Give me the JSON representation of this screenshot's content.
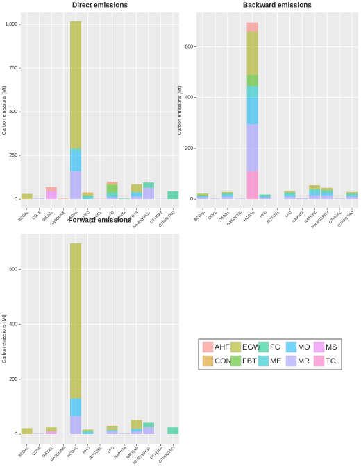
{
  "chart_data": [
    {
      "type": "bar",
      "stacked": true,
      "title": "Direct emissions",
      "ylabel": "Carbon emissions (Mt)",
      "categories": [
        "BCOAL",
        "COKE",
        "DIESEL",
        "GASOLINE",
        "HCOAL",
        "HFO",
        "JETFUEL",
        "LFO",
        "NAPHTA",
        "NATGAS",
        "NonENERGY",
        "OTHGAS",
        "OTHPETRO"
      ],
      "ylim": [
        -51,
        1068
      ],
      "yticks": [
        0,
        250,
        500,
        750,
        {
          "value": 1000,
          "label": "1,000"
        }
      ],
      "grid": true,
      "series": [
        {
          "name": "AHF",
          "color": "#F8766D",
          "values": [
            0,
            0,
            25,
            3,
            0,
            0,
            2,
            10,
            0,
            0,
            0,
            0,
            0
          ]
        },
        {
          "name": "CON",
          "color": "#D89000",
          "values": [
            0,
            0,
            0,
            0,
            0,
            8,
            0,
            0,
            0,
            0,
            0,
            0,
            0
          ]
        },
        {
          "name": "EGW",
          "color": "#A3A500",
          "values": [
            30,
            0,
            0,
            0,
            727,
            10,
            0,
            10,
            0,
            45,
            0,
            0,
            0
          ]
        },
        {
          "name": "FBT",
          "color": "#39B600",
          "values": [
            0,
            0,
            0,
            0,
            0,
            0,
            0,
            40,
            0,
            0,
            0,
            0,
            0
          ]
        },
        {
          "name": "FC",
          "color": "#00BF7D",
          "values": [
            0,
            0,
            0,
            0,
            5,
            12,
            0,
            20,
            3,
            0,
            30,
            0,
            45
          ]
        },
        {
          "name": "ME",
          "color": "#00BFC4",
          "values": [
            0,
            0,
            0,
            0,
            15,
            0,
            0,
            0,
            0,
            10,
            0,
            0,
            0
          ]
        },
        {
          "name": "MO",
          "color": "#00B0F6",
          "values": [
            0,
            0,
            0,
            0,
            110,
            8,
            0,
            10,
            0,
            15,
            0,
            0,
            0
          ]
        },
        {
          "name": "MR",
          "color": "#9590FF",
          "values": [
            0,
            3,
            0,
            0,
            160,
            0,
            0,
            10,
            0,
            15,
            65,
            2,
            0
          ]
        },
        {
          "name": "MS",
          "color": "#E76BF3",
          "values": [
            0,
            0,
            45,
            0,
            0,
            0,
            0,
            0,
            0,
            0,
            0,
            0,
            0
          ]
        },
        {
          "name": "TC",
          "color": "#FF62BC",
          "values": [
            0,
            0,
            0,
            0,
            0,
            0,
            0,
            0,
            0,
            0,
            0,
            0,
            0
          ]
        }
      ]
    },
    {
      "type": "bar",
      "stacked": true,
      "title": "Backward emissions",
      "ylabel": "Carbon emissions (Mt)",
      "categories": [
        "BCOAL",
        "COKE",
        "DIESEL",
        "GASOLINE",
        "HCOAL",
        "HFO",
        "JETFUEL",
        "LFO",
        "NAPHTA",
        "NATGAS",
        "NonENERGY",
        "OTHGAS",
        "OTHPETRO"
      ],
      "ylim": [
        -35,
        735
      ],
      "yticks": [
        0,
        200,
        400,
        600
      ],
      "grid": true,
      "series": [
        {
          "name": "AHF",
          "color": "#F8766D",
          "values": [
            0,
            0,
            0,
            0,
            35,
            0,
            0,
            0,
            0,
            0,
            0,
            0,
            0
          ]
        },
        {
          "name": "CON",
          "color": "#D89000",
          "values": [
            0,
            0,
            0,
            0,
            0,
            0,
            0,
            0,
            0,
            0,
            0,
            0,
            0
          ]
        },
        {
          "name": "EGW",
          "color": "#A3A500",
          "values": [
            4,
            0,
            5,
            0,
            170,
            0,
            0,
            6,
            0,
            15,
            10,
            0,
            6
          ]
        },
        {
          "name": "FBT",
          "color": "#39B600",
          "values": [
            5,
            0,
            0,
            0,
            45,
            0,
            0,
            0,
            0,
            0,
            0,
            0,
            0
          ]
        },
        {
          "name": "FC",
          "color": "#00BF7D",
          "values": [
            0,
            0,
            5,
            0,
            0,
            6,
            0,
            8,
            0,
            5,
            10,
            0,
            6
          ]
        },
        {
          "name": "ME",
          "color": "#00BFC4",
          "values": [
            0,
            0,
            0,
            0,
            45,
            0,
            0,
            0,
            0,
            10,
            0,
            0,
            0
          ]
        },
        {
          "name": "MO",
          "color": "#00B0F6",
          "values": [
            5,
            0,
            8,
            0,
            105,
            6,
            0,
            8,
            0,
            10,
            10,
            0,
            6
          ]
        },
        {
          "name": "MR",
          "color": "#9590FF",
          "values": [
            8,
            2,
            10,
            2,
            185,
            6,
            1,
            10,
            3,
            15,
            15,
            2,
            10
          ]
        },
        {
          "name": "MS",
          "color": "#E76BF3",
          "values": [
            0,
            0,
            0,
            0,
            0,
            0,
            0,
            0,
            0,
            0,
            0,
            0,
            0
          ]
        },
        {
          "name": "TC",
          "color": "#FF62BC",
          "values": [
            0,
            0,
            0,
            0,
            110,
            0,
            0,
            0,
            0,
            0,
            0,
            0,
            0
          ]
        }
      ]
    },
    {
      "type": "bar",
      "stacked": true,
      "title": "Forward emissions",
      "ylabel": "Carbon emissions (Mt)",
      "categories": [
        "BCOAL",
        "COKE",
        "DIESEL",
        "GASOLINE",
        "HCOAL",
        "HFO",
        "JETFUEL",
        "LFO",
        "NAPHTA",
        "NATGAS",
        "NonENERGY",
        "OTHGAS",
        "OTHPETRO"
      ],
      "ylim": [
        -35,
        730
      ],
      "yticks": [
        0,
        200,
        400,
        600
      ],
      "grid": true,
      "series": [
        {
          "name": "AHF",
          "color": "#F8766D",
          "values": [
            0,
            0,
            0,
            0,
            0,
            0,
            0,
            0,
            0,
            0,
            0,
            0,
            0
          ]
        },
        {
          "name": "CON",
          "color": "#D89000",
          "values": [
            0,
            0,
            0,
            0,
            0,
            0,
            0,
            0,
            0,
            0,
            0,
            0,
            0
          ]
        },
        {
          "name": "EGW",
          "color": "#A3A500",
          "values": [
            22,
            0,
            15,
            0,
            565,
            5,
            0,
            15,
            0,
            32,
            0,
            0,
            0
          ]
        },
        {
          "name": "FBT",
          "color": "#39B600",
          "values": [
            0,
            0,
            0,
            0,
            0,
            0,
            0,
            0,
            0,
            0,
            0,
            0,
            0
          ]
        },
        {
          "name": "FC",
          "color": "#00BF7D",
          "values": [
            0,
            0,
            0,
            0,
            0,
            6,
            0,
            0,
            0,
            0,
            17,
            0,
            25
          ]
        },
        {
          "name": "ME",
          "color": "#00BFC4",
          "values": [
            0,
            0,
            0,
            0,
            0,
            0,
            0,
            0,
            0,
            0,
            0,
            0,
            0
          ]
        },
        {
          "name": "MO",
          "color": "#00B0F6",
          "values": [
            0,
            0,
            0,
            0,
            65,
            6,
            0,
            5,
            0,
            10,
            0,
            0,
            0
          ]
        },
        {
          "name": "MR",
          "color": "#9590FF",
          "values": [
            0,
            2,
            0,
            1,
            65,
            0,
            1,
            10,
            2,
            10,
            25,
            1,
            0
          ]
        },
        {
          "name": "MS",
          "color": "#E76BF3",
          "values": [
            0,
            0,
            10,
            0,
            0,
            0,
            0,
            0,
            0,
            0,
            0,
            0,
            0
          ]
        },
        {
          "name": "TC",
          "color": "#FF62BC",
          "values": [
            0,
            0,
            0,
            0,
            0,
            0,
            0,
            0,
            0,
            0,
            0,
            0,
            0
          ]
        }
      ]
    }
  ]
}
